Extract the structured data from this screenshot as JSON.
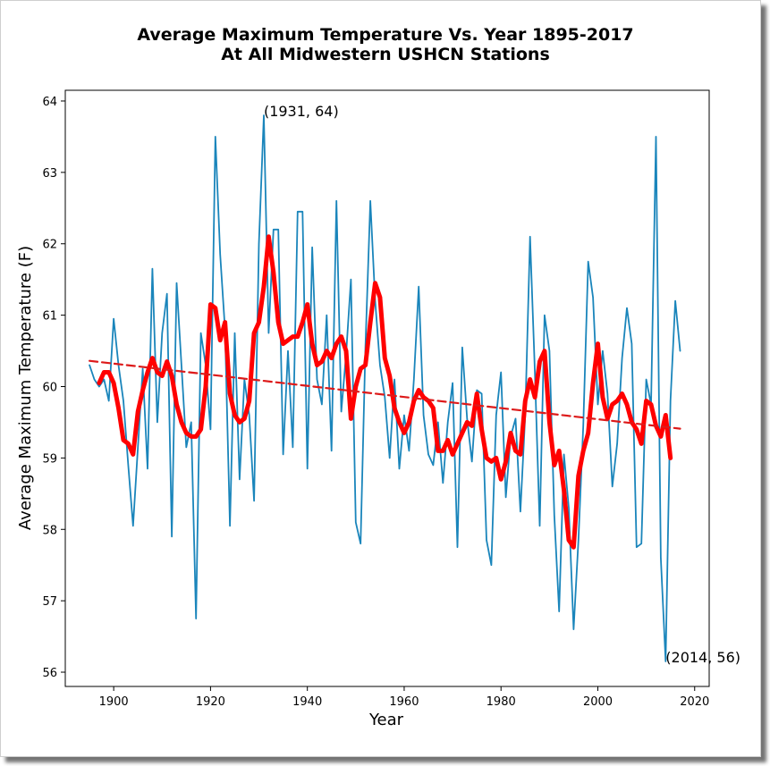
{
  "chart_data": {
    "type": "line",
    "title": "Average Maximum Temperature Vs. Year 1895-2017",
    "subtitle": "At All Midwestern USHCN Stations",
    "xlabel": "Year",
    "ylabel": "Average Maximum Temperature (F)",
    "xlim": [
      1890,
      2023
    ],
    "ylim": [
      55.8,
      64.15
    ],
    "xticks": [
      1900,
      1920,
      1940,
      1960,
      1980,
      2000,
      2020
    ],
    "yticks": [
      56,
      57,
      58,
      59,
      60,
      61,
      62,
      63,
      64
    ],
    "grid": false,
    "colors": {
      "raw": "#1a85bb",
      "smooth": "#ff0000",
      "trend": "#dd1a1a"
    },
    "series": [
      {
        "role": "annual",
        "x": [
          1895,
          1896,
          1897,
          1898,
          1899,
          1900,
          1901,
          1902,
          1903,
          1904,
          1905,
          1906,
          1907,
          1908,
          1909,
          1910,
          1911,
          1912,
          1913,
          1914,
          1915,
          1916,
          1917,
          1918,
          1919,
          1920,
          1921,
          1922,
          1923,
          1924,
          1925,
          1926,
          1927,
          1928,
          1929,
          1930,
          1931,
          1932,
          1933,
          1934,
          1935,
          1936,
          1937,
          1938,
          1939,
          1940,
          1941,
          1942,
          1943,
          1944,
          1945,
          1946,
          1947,
          1948,
          1949,
          1950,
          1951,
          1952,
          1953,
          1954,
          1955,
          1956,
          1957,
          1958,
          1959,
          1960,
          1961,
          1962,
          1963,
          1964,
          1965,
          1966,
          1967,
          1968,
          1969,
          1970,
          1971,
          1972,
          1973,
          1974,
          1975,
          1976,
          1977,
          1978,
          1979,
          1980,
          1981,
          1982,
          1983,
          1984,
          1985,
          1986,
          1987,
          1988,
          1989,
          1990,
          1991,
          1992,
          1993,
          1994,
          1995,
          1996,
          1997,
          1998,
          1999,
          2000,
          2001,
          2002,
          2003,
          2004,
          2005,
          2006,
          2007,
          2008,
          2009,
          2010,
          2011,
          2012,
          2013,
          2014,
          2015,
          2016,
          2017
        ],
        "y": [
          60.3,
          60.1,
          60.0,
          60.1,
          59.8,
          60.95,
          60.3,
          59.8,
          58.9,
          58.05,
          59.15,
          60.25,
          58.85,
          61.65,
          59.5,
          60.75,
          61.3,
          57.9,
          61.45,
          60.3,
          59.15,
          59.5,
          56.75,
          60.75,
          60.3,
          59.4,
          63.5,
          61.85,
          60.8,
          58.05,
          60.75,
          58.7,
          60.1,
          59.6,
          58.4,
          62.0,
          63.8,
          60.75,
          62.2,
          62.2,
          59.05,
          60.5,
          59.15,
          62.45,
          62.45,
          58.85,
          61.95,
          60.1,
          59.75,
          61.0,
          59.1,
          62.6,
          59.65,
          60.45,
          61.5,
          58.1,
          57.8,
          60.55,
          62.6,
          61.2,
          60.3,
          59.85,
          59.0,
          60.1,
          58.85,
          59.6,
          59.1,
          60.1,
          61.4,
          59.6,
          59.05,
          58.9,
          59.5,
          58.65,
          59.5,
          60.05,
          57.75,
          60.55,
          59.55,
          58.95,
          59.95,
          59.9,
          57.85,
          57.5,
          59.6,
          60.2,
          58.45,
          59.3,
          59.55,
          58.25,
          59.6,
          62.1,
          60.2,
          58.05,
          61.0,
          60.5,
          58.2,
          56.85,
          59.05,
          58.3,
          56.6,
          57.85,
          59.45,
          61.75,
          61.25,
          59.75,
          60.5,
          59.9,
          58.6,
          59.2,
          60.4,
          61.1,
          60.6,
          57.75,
          57.8,
          60.1,
          59.75,
          63.5,
          57.6,
          56.15,
          59.8,
          61.2,
          60.5
        ]
      },
      {
        "role": "smoothed",
        "x": [
          1897,
          1898,
          1899,
          1900,
          1901,
          1902,
          1903,
          1904,
          1905,
          1906,
          1907,
          1908,
          1909,
          1910,
          1911,
          1912,
          1913,
          1914,
          1915,
          1916,
          1917,
          1918,
          1919,
          1920,
          1921,
          1922,
          1923,
          1924,
          1925,
          1926,
          1927,
          1928,
          1929,
          1930,
          1931,
          1932,
          1933,
          1934,
          1935,
          1936,
          1937,
          1938,
          1939,
          1940,
          1941,
          1942,
          1943,
          1944,
          1945,
          1946,
          1947,
          1948,
          1949,
          1950,
          1951,
          1952,
          1953,
          1954,
          1955,
          1956,
          1957,
          1958,
          1959,
          1960,
          1961,
          1962,
          1963,
          1964,
          1965,
          1966,
          1967,
          1968,
          1969,
          1970,
          1971,
          1972,
          1973,
          1974,
          1975,
          1976,
          1977,
          1978,
          1979,
          1980,
          1981,
          1982,
          1983,
          1984,
          1985,
          1986,
          1987,
          1988,
          1989,
          1990,
          1991,
          1992,
          1993,
          1994,
          1995,
          1996,
          1997,
          1998,
          1999,
          2000,
          2001,
          2002,
          2003,
          2004,
          2005,
          2006,
          2007,
          2008,
          2009,
          2010,
          2011,
          2012,
          2013,
          2014,
          2015
        ],
        "y": [
          60.05,
          60.2,
          60.2,
          60.05,
          59.7,
          59.25,
          59.2,
          59.05,
          59.65,
          59.95,
          60.2,
          60.4,
          60.2,
          60.15,
          60.35,
          60.15,
          59.75,
          59.5,
          59.35,
          59.3,
          59.3,
          59.4,
          60.0,
          61.15,
          61.1,
          60.65,
          60.9,
          59.9,
          59.6,
          59.5,
          59.55,
          59.8,
          60.75,
          60.9,
          61.4,
          62.1,
          61.6,
          60.9,
          60.6,
          60.65,
          60.7,
          60.7,
          60.9,
          61.15,
          60.6,
          60.3,
          60.35,
          60.5,
          60.4,
          60.6,
          60.7,
          60.5,
          59.55,
          60.0,
          60.25,
          60.3,
          60.9,
          61.45,
          61.25,
          60.4,
          60.15,
          59.7,
          59.5,
          59.35,
          59.5,
          59.8,
          59.95,
          59.85,
          59.8,
          59.7,
          59.1,
          59.1,
          59.25,
          59.05,
          59.2,
          59.35,
          59.5,
          59.45,
          59.9,
          59.4,
          59.0,
          58.95,
          59.0,
          58.7,
          58.95,
          59.35,
          59.1,
          59.05,
          59.8,
          60.1,
          59.85,
          60.35,
          60.5,
          59.5,
          58.9,
          59.1,
          58.55,
          57.85,
          57.75,
          58.75,
          59.1,
          59.35,
          60.05,
          60.6,
          59.85,
          59.55,
          59.75,
          59.8,
          59.9,
          59.75,
          59.5,
          59.4,
          59.2,
          59.8,
          59.75,
          59.45,
          59.3,
          59.6,
          59.0
        ]
      },
      {
        "role": "trend",
        "x": [
          1895,
          2017
        ],
        "y": [
          60.36,
          59.41
        ]
      }
    ],
    "annotations": [
      {
        "text": "(1931, 64)",
        "x": 1931,
        "y": 63.8
      },
      {
        "text": "(2014, 56)",
        "x": 2014,
        "y": 56.15
      }
    ]
  }
}
